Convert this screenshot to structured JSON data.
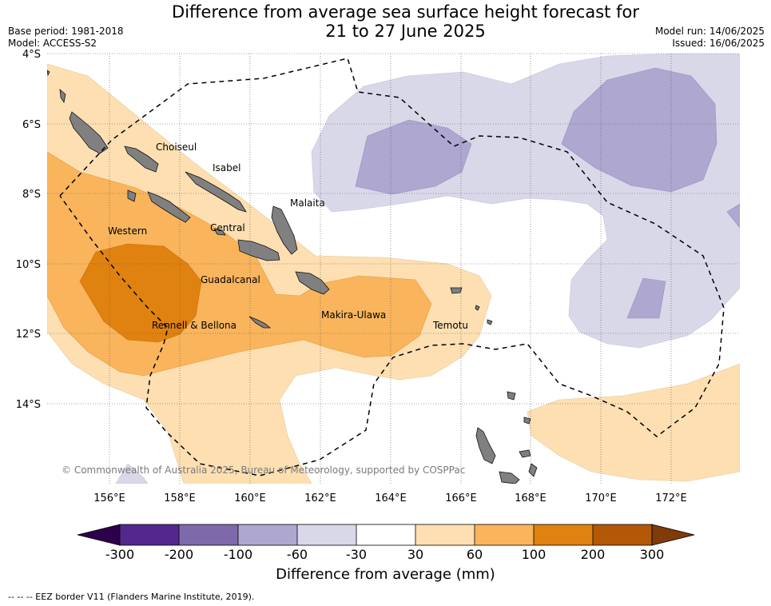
{
  "title": {
    "line1": "Difference from average sea surface height forecast for",
    "line2": "21 to 27 June 2025"
  },
  "meta": {
    "base_period": "Base period: 1981-2018",
    "model": "Model: ACCESS-S2",
    "model_run": "Model run: 14/06/2025",
    "issued": "Issued: 16/06/2025"
  },
  "map": {
    "lat_labels": [
      "4°S",
      "6°S",
      "8°S",
      "10°S",
      "12°S",
      "14°S"
    ],
    "lon_labels": [
      "156°E",
      "158°E",
      "160°E",
      "162°E",
      "164°E",
      "166°E",
      "168°E",
      "170°E",
      "172°E"
    ],
    "regions": [
      "Choiseul",
      "Isabel",
      "Malaita",
      "Western",
      "Central",
      "Guadalcanal",
      "Rennell & Bellona",
      "Makira-Ulawa",
      "Temotu"
    ],
    "copyright": "© Commonwealth of Australia 2025, Bureau of Meteorology, supported by COSPPac",
    "colors": {
      "land": "#808080",
      "ocean": "#ffffff",
      "grid": "#6e6e6e",
      "eez": "#000000"
    }
  },
  "colorbar": {
    "title": "Difference from average (mm)",
    "tick_labels": [
      "-300",
      "-200",
      "-100",
      "-60",
      "-30",
      "30",
      "60",
      "100",
      "200",
      "300"
    ],
    "colors": [
      "#54278f",
      "#7e6aaa",
      "#aea7cf",
      "#d8d8e9",
      "#ffffff",
      "#fddfb2",
      "#f9b45c",
      "#e0820f",
      "#b35806"
    ],
    "under_color": "#2d004b",
    "over_color": "#7f3b08"
  },
  "legend": {
    "eez_text": "--  --  -- EEZ border V11 (Flanders Marine Institute, 2019)."
  }
}
